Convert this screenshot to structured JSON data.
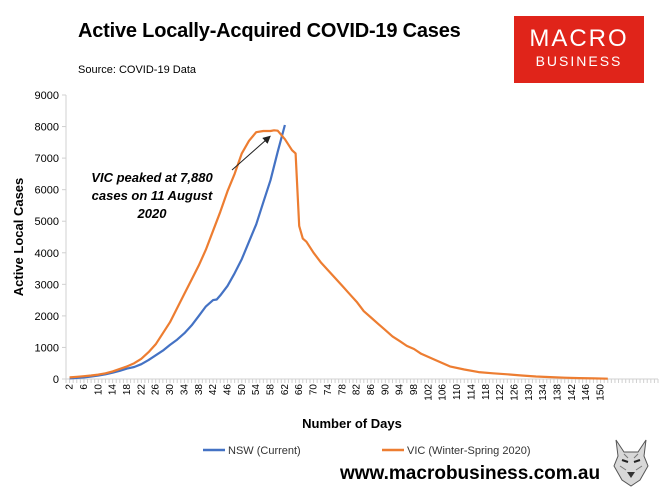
{
  "header": {
    "title": "Active Locally-Acquired COVID-19 Cases",
    "source": "Source: COVID-19 Data"
  },
  "logo": {
    "line1": "MACRO",
    "line2": "BUSINESS"
  },
  "footer": {
    "website": "www.macrobusiness.com.au"
  },
  "colors": {
    "nsw": "#4472c4",
    "vic": "#ed7d31",
    "logo_bg": "#e0241a"
  },
  "chart_data": {
    "type": "line",
    "title": "Active Locally-Acquired COVID-19 Cases",
    "xlabel": "Number of Days",
    "ylabel": "Active Local Cases",
    "xlim": [
      1,
      166
    ],
    "ylim": [
      0,
      9000
    ],
    "yticks": [
      0,
      1000,
      2000,
      3000,
      4000,
      5000,
      6000,
      7000,
      8000,
      9000
    ],
    "xticks": [
      2,
      6,
      10,
      14,
      18,
      22,
      26,
      30,
      34,
      38,
      42,
      46,
      50,
      54,
      58,
      62,
      66,
      70,
      74,
      78,
      82,
      86,
      90,
      94,
      98,
      102,
      106,
      110,
      114,
      118,
      122,
      126,
      130,
      134,
      138,
      142,
      146,
      150
    ],
    "grid": false,
    "legend_position": "bottom",
    "annotation": {
      "text": "VIC peaked at 7,880 cases on 11 August 2020",
      "x": 59,
      "y": 7880
    },
    "series": [
      {
        "name": "NSW (Current)",
        "color": "#4472c4",
        "x": [
          2,
          4,
          6,
          8,
          10,
          12,
          14,
          16,
          18,
          20,
          22,
          24,
          26,
          28,
          30,
          32,
          34,
          36,
          38,
          40,
          42,
          43,
          44,
          46,
          48,
          50,
          52,
          54,
          56,
          58,
          60,
          62
        ],
        "values": [
          20,
          35,
          50,
          80,
          110,
          150,
          200,
          260,
          330,
          380,
          470,
          600,
          750,
          900,
          1080,
          1250,
          1450,
          1700,
          2000,
          2300,
          2500,
          2520,
          2650,
          2950,
          3350,
          3800,
          4350,
          4900,
          5600,
          6300,
          7200,
          8050
        ]
      },
      {
        "name": "VIC (Winter-Spring 2020)",
        "color": "#ed7d31",
        "x": [
          2,
          4,
          6,
          8,
          10,
          12,
          14,
          16,
          18,
          20,
          22,
          24,
          26,
          28,
          30,
          32,
          34,
          36,
          38,
          40,
          42,
          44,
          46,
          48,
          50,
          52,
          54,
          56,
          58,
          59,
          60,
          62,
          64,
          65,
          66,
          67,
          68,
          70,
          72,
          74,
          76,
          78,
          80,
          82,
          84,
          86,
          88,
          90,
          92,
          94,
          96,
          98,
          100,
          104,
          108,
          112,
          116,
          120,
          124,
          128,
          132,
          136,
          140,
          144,
          148,
          152
        ],
        "values": [
          50,
          70,
          90,
          110,
          140,
          180,
          240,
          320,
          400,
          500,
          640,
          850,
          1100,
          1450,
          1800,
          2250,
          2700,
          3150,
          3600,
          4100,
          4700,
          5300,
          5950,
          6500,
          7150,
          7550,
          7820,
          7860,
          7860,
          7880,
          7870,
          7600,
          7250,
          7150,
          4850,
          4450,
          4350,
          4000,
          3700,
          3450,
          3200,
          2950,
          2700,
          2450,
          2150,
          1950,
          1750,
          1550,
          1350,
          1200,
          1050,
          950,
          800,
          600,
          400,
          300,
          220,
          180,
          150,
          110,
          80,
          60,
          40,
          30,
          20,
          10
        ]
      }
    ]
  }
}
